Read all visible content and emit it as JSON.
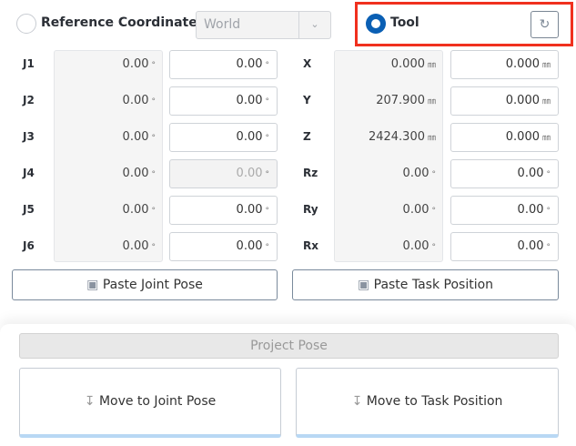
{
  "header": {
    "ref_label": "Reference Coordinates",
    "ref_select": "World",
    "tool_label": "Tool",
    "reset_icon": "reset-icon"
  },
  "joints": [
    {
      "label": "J1",
      "current": "0.00",
      "target": "0.00",
      "unit": "°",
      "disabled": false
    },
    {
      "label": "J2",
      "current": "0.00",
      "target": "0.00",
      "unit": "°",
      "disabled": false
    },
    {
      "label": "J3",
      "current": "0.00",
      "target": "0.00",
      "unit": "°",
      "disabled": false
    },
    {
      "label": "J4",
      "current": "0.00",
      "target": "0.00",
      "unit": "°",
      "disabled": true
    },
    {
      "label": "J5",
      "current": "0.00",
      "target": "0.00",
      "unit": "°",
      "disabled": false
    },
    {
      "label": "J6",
      "current": "0.00",
      "target": "0.00",
      "unit": "°",
      "disabled": false
    }
  ],
  "task": [
    {
      "label": "X",
      "current": "0.000",
      "target": "0.000",
      "unit": "㎜"
    },
    {
      "label": "Y",
      "current": "207.900",
      "target": "0.000",
      "unit": "㎜"
    },
    {
      "label": "Z",
      "current": "2424.300",
      "target": "0.000",
      "unit": "㎜"
    },
    {
      "label": "Rz",
      "current": "0.00",
      "target": "0.00",
      "unit": "°"
    },
    {
      "label": "Ry",
      "current": "0.00",
      "target": "0.00",
      "unit": "°"
    },
    {
      "label": "Rx",
      "current": "0.00",
      "target": "0.00",
      "unit": "°"
    }
  ],
  "buttons": {
    "paste_joint": "Paste Joint Pose",
    "paste_task": "Paste Task Position",
    "project": "Project Pose",
    "move_joint": "Move to Joint Pose",
    "move_task": "Move to Task Position"
  },
  "colors": {
    "accent": "#0a5fb4",
    "highlight": "#f0301e"
  }
}
